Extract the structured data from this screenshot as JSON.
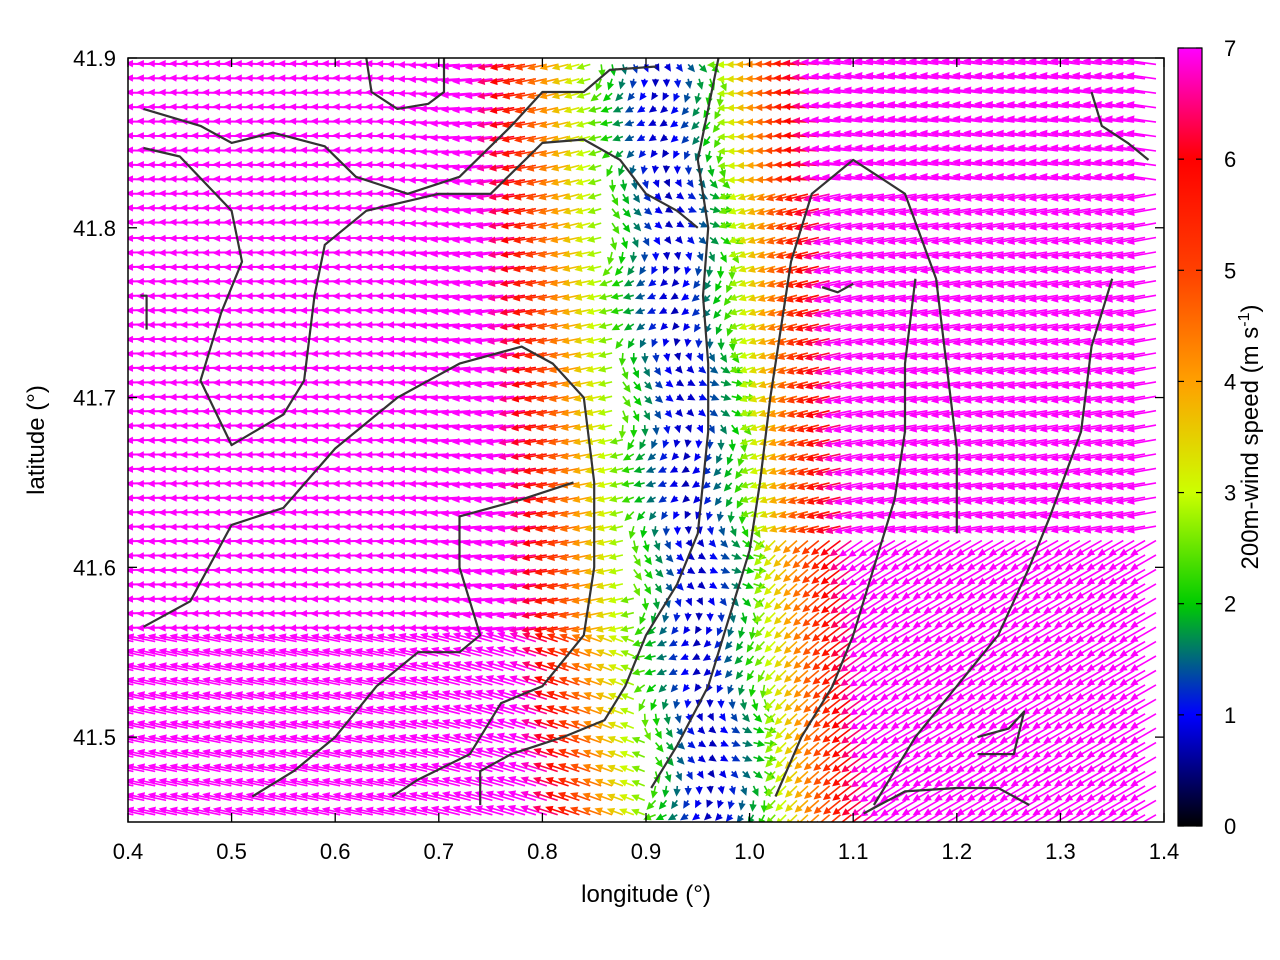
{
  "chart_data": {
    "type": "vector-field",
    "title": "",
    "xlabel": "longitude (°)",
    "ylabel": "latitude (°)",
    "colorbar_label_main": "200m-wind speed (m s",
    "colorbar_label_sup": "-1",
    "colorbar_label_close": ")",
    "xlim": [
      0.4,
      1.4
    ],
    "ylim": [
      41.45,
      41.9
    ],
    "x_ticks": [
      "0.4",
      "0.5",
      "0.6",
      "0.7",
      "0.8",
      "0.9",
      "1.0",
      "1.1",
      "1.2",
      "1.3",
      "1.4"
    ],
    "x_tick_values": [
      0.4,
      0.5,
      0.6,
      0.7,
      0.8,
      0.9,
      1.0,
      1.1,
      1.2,
      1.3,
      1.4
    ],
    "y_ticks": [
      "41.5",
      "41.6",
      "41.7",
      "41.8",
      "41.9"
    ],
    "y_tick_values": [
      41.5,
      41.6,
      41.7,
      41.8,
      41.9
    ],
    "colorbar_range": [
      0,
      7
    ],
    "colorbar_ticks": [
      "0",
      "1",
      "2",
      "3",
      "4",
      "5",
      "6",
      "7"
    ],
    "colorbar_stops": [
      "#000000",
      "#0000ff",
      "#00cc00",
      "#ccff00",
      "#ffa000",
      "#ff4000",
      "#ff0000",
      "#ff00ff"
    ],
    "grid": false,
    "coastline_color": "#333333"
  }
}
